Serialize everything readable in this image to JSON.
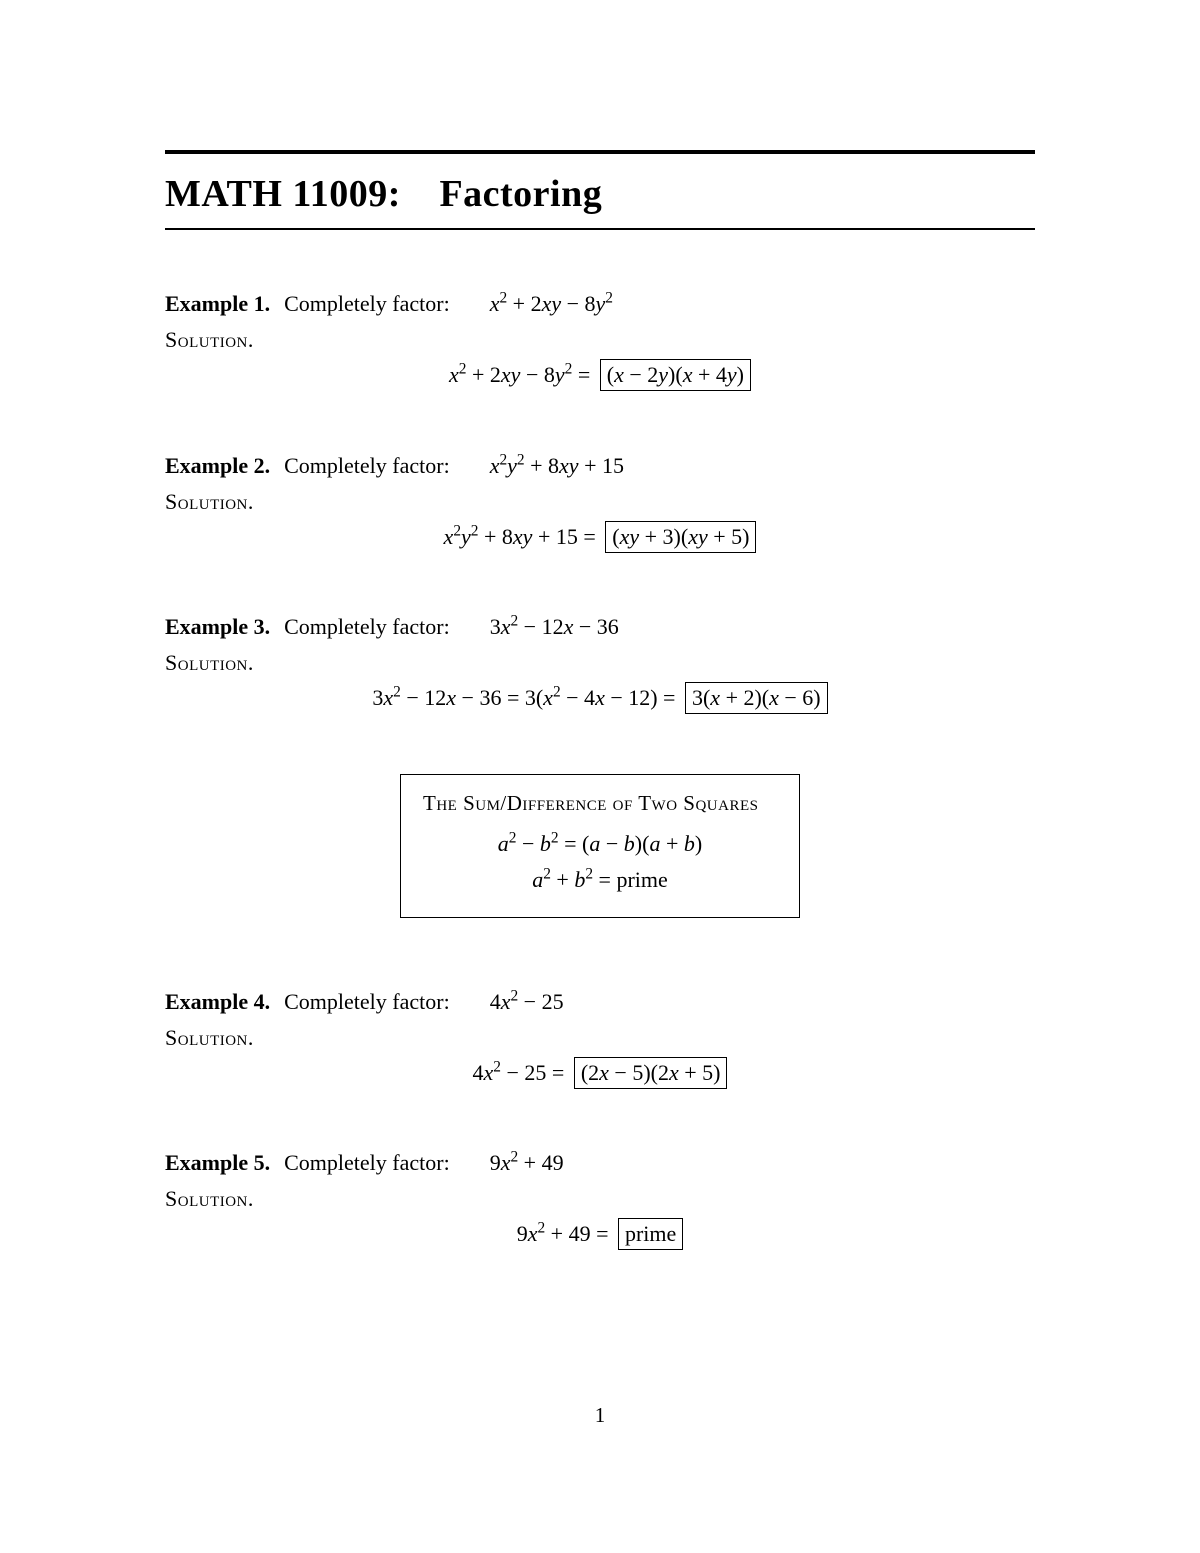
{
  "title": "MATH 11009: Factoring",
  "solution_label": "Solution.",
  "prompt": "Completely factor:",
  "examples": [
    {
      "label": "Example 1.",
      "expr_html": "<span class='math'>x<sup>2</sup> <span class='n'>+ 2</span>xy <span class='n'>− 8</span>y<sup>2</sup></span>",
      "sol_html": "<span class='math'>x<sup>2</sup> <span class='n'>+ 2</span>xy <span class='n'>− 8</span>y<sup>2</sup> <span class='n'>=</span> </span><span class='boxed'><span class='math'><span class='n'>(</span>x <span class='n'>− 2</span>y<span class='n'>)(</span>x <span class='n'>+ 4</span>y<span class='n'>)</span></span></span>"
    },
    {
      "label": "Example 2.",
      "expr_html": "<span class='math'>x<sup>2</sup>y<sup>2</sup> <span class='n'>+ 8</span>xy <span class='n'>+ 15</span></span>",
      "sol_html": "<span class='math'>x<sup>2</sup>y<sup>2</sup> <span class='n'>+ 8</span>xy <span class='n'>+ 15 =</span> </span><span class='boxed'><span class='math'><span class='n'>(</span>xy <span class='n'>+ 3)(</span>xy <span class='n'>+ 5)</span></span></span>"
    },
    {
      "label": "Example 3.",
      "expr_html": "<span class='math'><span class='n'>3</span>x<sup>2</sup> <span class='n'>− 12</span>x <span class='n'>− 36</span></span>",
      "sol_html": "<span class='math'><span class='n'>3</span>x<sup>2</sup> <span class='n'>− 12</span>x <span class='n'>− 36 = 3(</span>x<sup>2</sup> <span class='n'>− 4</span>x <span class='n'>− 12) =</span> </span><span class='boxed'><span class='math'><span class='n'>3(</span>x <span class='n'>+ 2)(</span>x <span class='n'>− 6)</span></span></span>"
    },
    {
      "label": "Example 4.",
      "expr_html": "<span class='math'><span class='n'>4</span>x<sup>2</sup> <span class='n'>− 25</span></span>",
      "sol_html": "<span class='math'><span class='n'>4</span>x<sup>2</sup> <span class='n'>− 25 =</span> </span><span class='boxed'><span class='math'><span class='n'>(2</span>x <span class='n'>− 5)(2</span>x <span class='n'>+ 5)</span></span></span>"
    },
    {
      "label": "Example 5.",
      "expr_html": "<span class='math'><span class='n'>9</span>x<sup>2</sup> <span class='n'>+ 49</span></span>",
      "sol_html": "<span class='math'><span class='n'>9</span>x<sup>2</sup> <span class='n'>+ 49 =</span> </span><span class='boxed'><span class='n'>prime</span></span>"
    }
  ],
  "theorem": {
    "title": "The Sum/Difference of Two Squares",
    "line1_html": "<span class='math'>a<sup>2</sup> <span class='n'>−</span> b<sup>2</sup> <span class='n'>= (</span>a <span class='n'>−</span> b<span class='n'>)(</span>a <span class='n'>+</span> b<span class='n'>)</span></span>",
    "line2_html": "<span class='math'>a<sup>2</sup> <span class='n'>+</span> b<sup>2</sup> <span class='n'>= prime</span></span>"
  },
  "page_number": "1",
  "colors": {
    "text": "#000000",
    "background": "#ffffff"
  },
  "fonts": {
    "body_pt": 22,
    "title_pt": 38
  }
}
